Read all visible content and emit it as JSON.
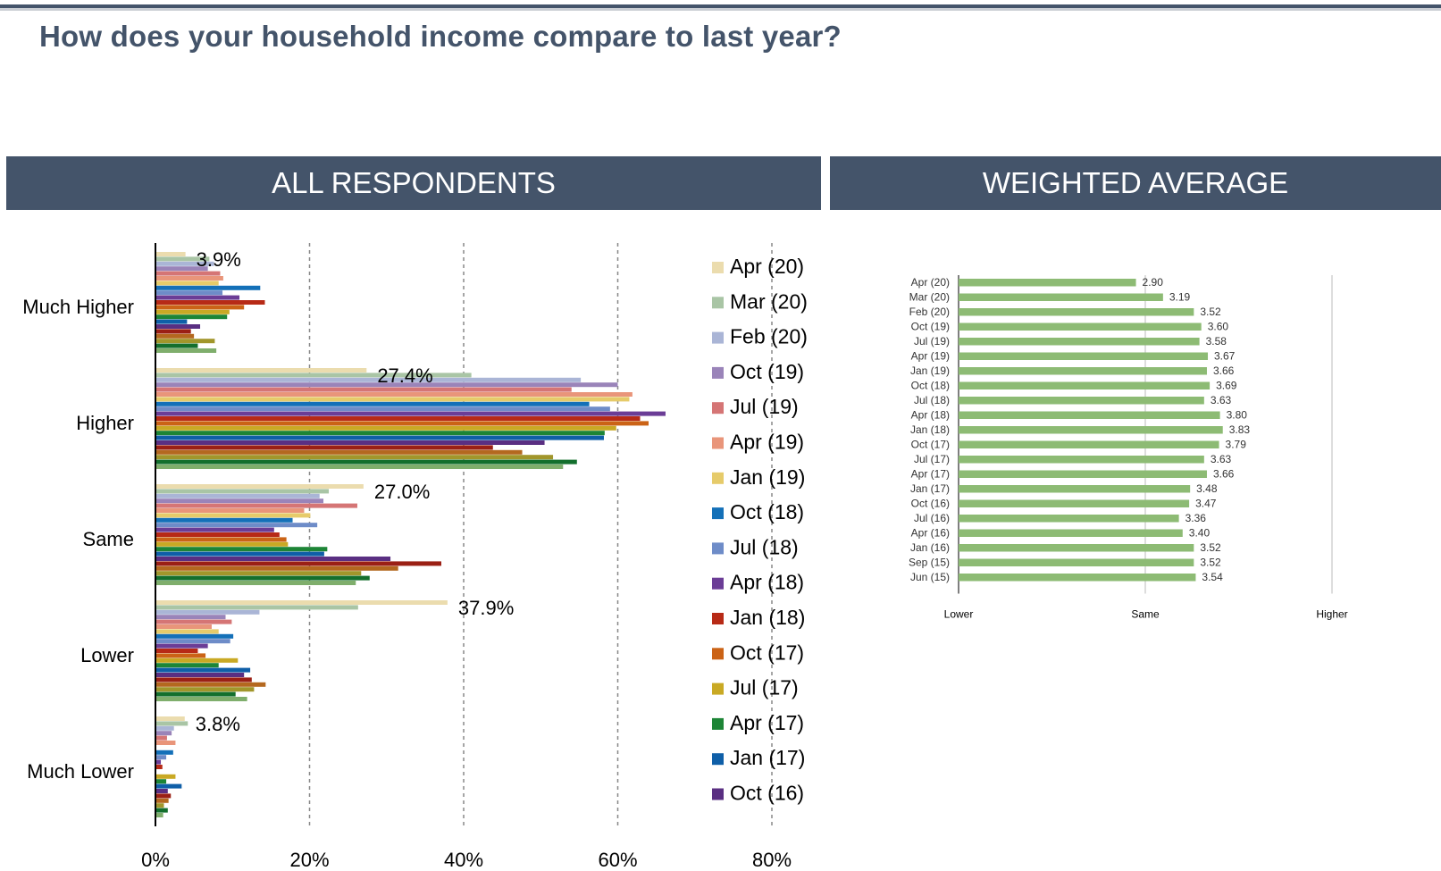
{
  "page": {
    "title": "How does your household income compare to last year?",
    "left_header": "ALL RESPONDENTS",
    "right_header": "WEIGHTED AVERAGE"
  },
  "colors": {
    "header_bg": "#44546a",
    "weighted_bar": "#8dbb74"
  },
  "chart_data": [
    {
      "type": "bar",
      "orientation": "horizontal",
      "categories": [
        "Much Higher",
        "Higher",
        "Same",
        "Lower",
        "Much Lower"
      ],
      "xlim": [
        0,
        80
      ],
      "xticks": [
        "0%",
        "20%",
        "40%",
        "60%",
        "80%"
      ],
      "grid": "vertical dashed",
      "legend_position": "right",
      "annotations": [
        "3.9%",
        "27.4%",
        "27.0%",
        "37.9%",
        "3.8%"
      ],
      "series": [
        {
          "name": "Apr (20)",
          "color": "#ebdcae",
          "values": [
            3.9,
            27.4,
            27.0,
            37.9,
            3.8
          ]
        },
        {
          "name": "Mar (20)",
          "color": "#a9c5a5",
          "values": [
            7.0,
            41.0,
            22.5,
            26.3,
            4.2
          ]
        },
        {
          "name": "Feb (20)",
          "color": "#aab5d6",
          "values": [
            7.6,
            55.2,
            21.3,
            13.5,
            2.4
          ]
        },
        {
          "name": "Oct (19)",
          "color": "#9a84b9",
          "values": [
            6.8,
            60.0,
            21.8,
            9.1,
            2.1
          ]
        },
        {
          "name": "Jul (19)",
          "color": "#d57575",
          "values": [
            8.4,
            54.0,
            26.2,
            9.9,
            1.5
          ]
        },
        {
          "name": "Apr (19)",
          "color": "#e9957a",
          "values": [
            8.8,
            61.9,
            19.3,
            7.3,
            2.6
          ]
        },
        {
          "name": "Jan (19)",
          "color": "#e6cb6a",
          "values": [
            8.2,
            61.5,
            20.1,
            8.2,
            null
          ]
        },
        {
          "name": "Oct (18)",
          "color": "#1470b8",
          "values": [
            13.6,
            56.3,
            17.8,
            10.1,
            2.3
          ]
        },
        {
          "name": "Jul (18)",
          "color": "#6e8cc8",
          "values": [
            8.7,
            59.0,
            21.0,
            9.7,
            1.4
          ]
        },
        {
          "name": "Apr (18)",
          "color": "#6b3d96",
          "values": [
            10.9,
            66.2,
            15.4,
            6.8,
            0.7
          ]
        },
        {
          "name": "Jan (18)",
          "color": "#b72a16",
          "values": [
            14.2,
            62.9,
            16.1,
            5.5,
            0.9
          ]
        },
        {
          "name": "Oct (17)",
          "color": "#cb6316",
          "values": [
            11.5,
            64.0,
            17.0,
            6.5,
            null
          ]
        },
        {
          "name": "Jul (17)",
          "color": "#c9a924",
          "values": [
            9.6,
            59.8,
            17.2,
            10.7,
            2.6
          ]
        },
        {
          "name": "Apr (17)",
          "color": "#1d8536",
          "values": [
            9.3,
            58.3,
            22.3,
            8.2,
            1.4
          ]
        },
        {
          "name": "Jan (17)",
          "color": "#0f5fa8",
          "values": [
            4.1,
            58.2,
            21.9,
            12.3,
            3.4
          ]
        },
        {
          "name": "Oct (16)",
          "color": "#5a2f82",
          "values": [
            5.8,
            50.5,
            30.5,
            11.5,
            1.6
          ]
        },
        {
          "name": "Jul (16)",
          "color": "#9b2015",
          "values": [
            4.6,
            43.8,
            37.1,
            12.5,
            2.0
          ]
        },
        {
          "name": "Apr (16)",
          "color": "#b4681f",
          "values": [
            5.0,
            47.6,
            31.5,
            14.3,
            1.7
          ]
        },
        {
          "name": "Jan (16)",
          "color": "#a1962b",
          "values": [
            7.7,
            51.6,
            26.7,
            12.8,
            1.1
          ]
        },
        {
          "name": "Sep (15)",
          "color": "#136f2d",
          "values": [
            5.5,
            54.7,
            27.8,
            10.4,
            1.6
          ]
        },
        {
          "name": "Jun (15)",
          "color": "#7fae6c",
          "values": [
            7.9,
            52.9,
            26.0,
            11.9,
            1.0
          ]
        }
      ],
      "legend_visible": [
        "Apr (20)",
        "Mar (20)",
        "Feb (20)",
        "Oct (19)",
        "Jul (19)",
        "Apr (19)",
        "Jan (19)",
        "Oct (18)",
        "Jul (18)",
        "Apr (18)",
        "Jan (18)",
        "Oct (17)",
        "Jul (17)",
        "Apr (17)",
        "Jan (17)",
        "Oct (16)"
      ]
    },
    {
      "type": "bar",
      "orientation": "horizontal",
      "xlim": [
        1,
        5
      ],
      "axis_labels": [
        "Lower",
        "Same",
        "Higher"
      ],
      "axis_label_values": [
        1,
        3,
        5
      ],
      "grid": "vertical solid",
      "categories": [
        "Apr (20)",
        "Mar (20)",
        "Feb (20)",
        "Oct (19)",
        "Jul (19)",
        "Apr (19)",
        "Jan (19)",
        "Oct (18)",
        "Jul (18)",
        "Apr (18)",
        "Jan (18)",
        "Oct (17)",
        "Jul (17)",
        "Apr (17)",
        "Jan (17)",
        "Oct (16)",
        "Jul (16)",
        "Apr (16)",
        "Jan (16)",
        "Sep (15)",
        "Jun (15)"
      ],
      "values": [
        2.9,
        3.19,
        3.52,
        3.6,
        3.58,
        3.67,
        3.66,
        3.69,
        3.63,
        3.8,
        3.83,
        3.79,
        3.63,
        3.66,
        3.48,
        3.47,
        3.36,
        3.4,
        3.52,
        3.52,
        3.54
      ],
      "value_labels": [
        "2.90",
        "3.19",
        "3.52",
        "3.60",
        "3.58",
        "3.67",
        "3.66",
        "3.69",
        "3.63",
        "3.80",
        "3.83",
        "3.79",
        "3.63",
        "3.66",
        "3.48",
        "3.47",
        "3.36",
        "3.40",
        "3.52",
        "3.52",
        "3.54"
      ]
    }
  ]
}
